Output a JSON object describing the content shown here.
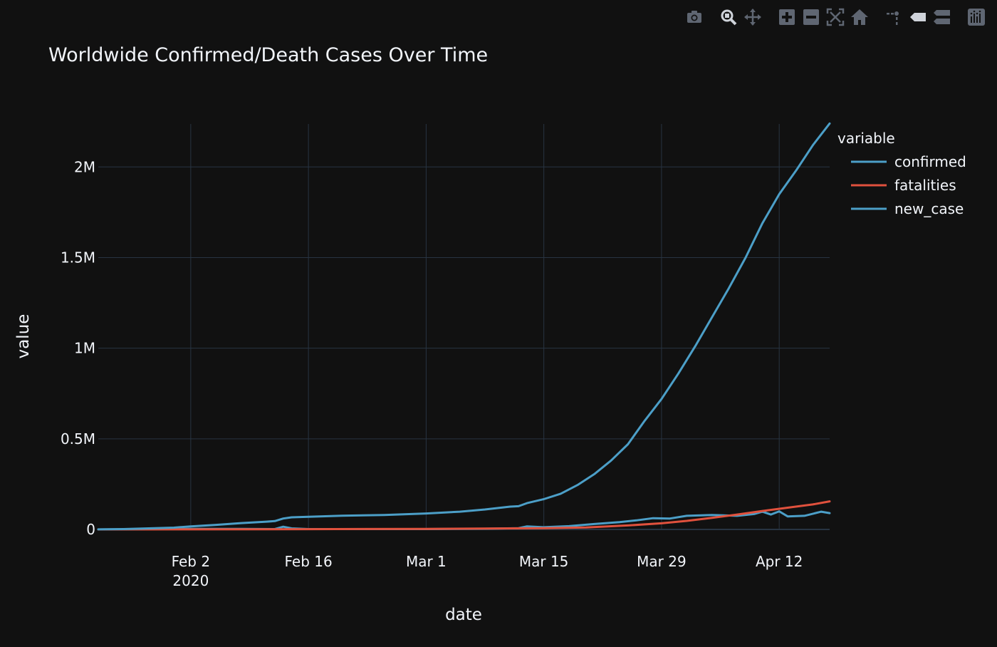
{
  "modebar": {
    "buttons": [
      {
        "name": "camera-icon",
        "group": 0
      },
      {
        "name": "zoom-icon",
        "group": 1
      },
      {
        "name": "pan-icon",
        "group": 1
      },
      {
        "name": "zoom-in-icon",
        "group": 2
      },
      {
        "name": "zoom-out-icon",
        "group": 2
      },
      {
        "name": "autoscale-icon",
        "group": 2
      },
      {
        "name": "home-icon",
        "group": 2
      },
      {
        "name": "spike-lines-icon",
        "group": 3
      },
      {
        "name": "hover-closest-icon",
        "group": 3
      },
      {
        "name": "hover-compare-icon",
        "group": 3
      },
      {
        "name": "plotly-logo-icon",
        "group": 4
      }
    ]
  },
  "colors": {
    "background": "#111111",
    "grid": "#283442",
    "zeroline": "#283442",
    "text": "#f2f5fa",
    "icon": "#5f6672",
    "confirmed": "#4c9fc8",
    "fatalities": "#e0513d",
    "new_case": "#4c9fc8"
  },
  "chart_data": {
    "type": "line",
    "title": "Worldwide Confirmed/Death Cases Over Time",
    "xlabel": "date",
    "ylabel": "value",
    "legend_title": "variable",
    "legend_position": "right",
    "grid": true,
    "x_start": "2020-01-22",
    "x_end": "2020-04-18",
    "xlim": [
      "2020-01-22",
      "2020-04-18"
    ],
    "ylim": [
      0,
      2300000
    ],
    "x_ticks": [
      {
        "date": "2020-02-02",
        "label": "Feb 2",
        "sublabel": "2020"
      },
      {
        "date": "2020-02-16",
        "label": "Feb 16",
        "sublabel": ""
      },
      {
        "date": "2020-03-01",
        "label": "Mar 1",
        "sublabel": ""
      },
      {
        "date": "2020-03-15",
        "label": "Mar 15",
        "sublabel": ""
      },
      {
        "date": "2020-03-29",
        "label": "Mar 29",
        "sublabel": ""
      },
      {
        "date": "2020-04-12",
        "label": "Apr 12",
        "sublabel": ""
      }
    ],
    "y_ticks": [
      {
        "value": 0,
        "label": "0"
      },
      {
        "value": 500000,
        "label": "0.5M"
      },
      {
        "value": 1000000,
        "label": "1M"
      },
      {
        "value": 1500000,
        "label": "1.5M"
      },
      {
        "value": 2000000,
        "label": "2M"
      }
    ],
    "series": [
      {
        "name": "confirmed",
        "color_key": "confirmed",
        "points": [
          [
            "2020-01-22",
            555
          ],
          [
            "2020-01-25",
            2000
          ],
          [
            "2020-01-28",
            6000
          ],
          [
            "2020-01-31",
            10000
          ],
          [
            "2020-02-02",
            17000
          ],
          [
            "2020-02-05",
            25000
          ],
          [
            "2020-02-08",
            35000
          ],
          [
            "2020-02-11",
            43000
          ],
          [
            "2020-02-12",
            46000
          ],
          [
            "2020-02-13",
            60000
          ],
          [
            "2020-02-14",
            67000
          ],
          [
            "2020-02-16",
            70000
          ],
          [
            "2020-02-20",
            76000
          ],
          [
            "2020-02-25",
            80000
          ],
          [
            "2020-03-01",
            88000
          ],
          [
            "2020-03-05",
            98000
          ],
          [
            "2020-03-08",
            110000
          ],
          [
            "2020-03-11",
            126000
          ],
          [
            "2020-03-12",
            128000
          ],
          [
            "2020-03-13",
            145000
          ],
          [
            "2020-03-15",
            167000
          ],
          [
            "2020-03-17",
            197000
          ],
          [
            "2020-03-19",
            245000
          ],
          [
            "2020-03-21",
            305000
          ],
          [
            "2020-03-23",
            380000
          ],
          [
            "2020-03-25",
            470000
          ],
          [
            "2020-03-27",
            600000
          ],
          [
            "2020-03-29",
            720000
          ],
          [
            "2020-03-31",
            860000
          ],
          [
            "2020-04-02",
            1010000
          ],
          [
            "2020-04-04",
            1170000
          ],
          [
            "2020-04-06",
            1330000
          ],
          [
            "2020-04-08",
            1500000
          ],
          [
            "2020-04-10",
            1690000
          ],
          [
            "2020-04-12",
            1850000
          ],
          [
            "2020-04-14",
            1980000
          ],
          [
            "2020-04-16",
            2120000
          ],
          [
            "2020-04-18",
            2240000
          ]
        ]
      },
      {
        "name": "fatalities",
        "color_key": "fatalities",
        "points": [
          [
            "2020-01-22",
            17
          ],
          [
            "2020-02-02",
            360
          ],
          [
            "2020-02-16",
            1700
          ],
          [
            "2020-03-01",
            3000
          ],
          [
            "2020-03-15",
            6500
          ],
          [
            "2020-03-20",
            11000
          ],
          [
            "2020-03-25",
            22000
          ],
          [
            "2020-03-29",
            34000
          ],
          [
            "2020-04-01",
            47000
          ],
          [
            "2020-04-04",
            64000
          ],
          [
            "2020-04-07",
            82000
          ],
          [
            "2020-04-10",
            102000
          ],
          [
            "2020-04-13",
            120000
          ],
          [
            "2020-04-16",
            138000
          ],
          [
            "2020-04-18",
            155000
          ]
        ]
      },
      {
        "name": "new_case",
        "color_key": "new_case",
        "points": [
          [
            "2020-01-22",
            0
          ],
          [
            "2020-01-28",
            1500
          ],
          [
            "2020-02-02",
            2600
          ],
          [
            "2020-02-08",
            3000
          ],
          [
            "2020-02-12",
            2000
          ],
          [
            "2020-02-13",
            15000
          ],
          [
            "2020-02-14",
            6000
          ],
          [
            "2020-02-16",
            2000
          ],
          [
            "2020-03-01",
            1800
          ],
          [
            "2020-03-08",
            3800
          ],
          [
            "2020-03-12",
            7000
          ],
          [
            "2020-03-13",
            17000
          ],
          [
            "2020-03-15",
            12000
          ],
          [
            "2020-03-18",
            18000
          ],
          [
            "2020-03-21",
            30000
          ],
          [
            "2020-03-24",
            40000
          ],
          [
            "2020-03-26",
            50000
          ],
          [
            "2020-03-28",
            62000
          ],
          [
            "2020-03-30",
            60000
          ],
          [
            "2020-04-01",
            75000
          ],
          [
            "2020-04-04",
            80000
          ],
          [
            "2020-04-07",
            75000
          ],
          [
            "2020-04-09",
            85000
          ],
          [
            "2020-04-10",
            98000
          ],
          [
            "2020-04-11",
            82000
          ],
          [
            "2020-04-12",
            100000
          ],
          [
            "2020-04-13",
            72000
          ],
          [
            "2020-04-15",
            75000
          ],
          [
            "2020-04-17",
            98000
          ],
          [
            "2020-04-18",
            90000
          ]
        ]
      }
    ]
  }
}
